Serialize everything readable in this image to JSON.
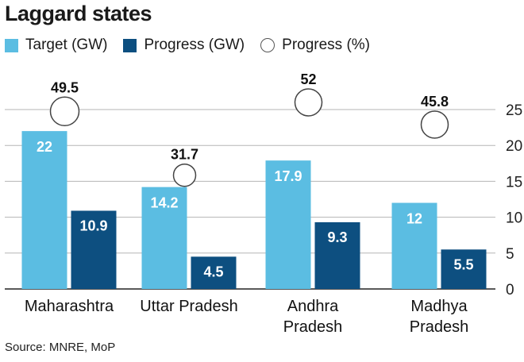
{
  "title": "Laggard states",
  "source": "Source: MNRE, MoP",
  "legend": [
    {
      "label": "Target (GW)",
      "shape": "square",
      "color": "#5bbde2"
    },
    {
      "label": "Progress (GW)",
      "shape": "square",
      "color": "#0d4f80"
    },
    {
      "label": "Progress (%)",
      "shape": "circle",
      "color": "#ffffff"
    }
  ],
  "chart_data": {
    "type": "bar",
    "categories": [
      [
        "Maharashtra"
      ],
      [
        "Uttar Pradesh"
      ],
      [
        "Andhra",
        "Pradesh"
      ],
      [
        "Madhya",
        "Pradesh"
      ]
    ],
    "series": [
      {
        "name": "Target (GW)",
        "values": [
          22,
          14.2,
          17.9,
          12
        ],
        "color": "#5bbde2"
      },
      {
        "name": "Progress (GW)",
        "values": [
          10.9,
          4.5,
          9.3,
          5.5
        ],
        "color": "#0d4f80"
      }
    ],
    "progress_percent": {
      "name": "Progress (%)",
      "values": [
        49.5,
        31.7,
        52,
        45.8
      ]
    },
    "y_axis": {
      "min": 0,
      "max": 25,
      "ticks": [
        0,
        5,
        10,
        15,
        20,
        25
      ],
      "position": "right"
    },
    "grid": true,
    "legend_position": "top-left"
  }
}
